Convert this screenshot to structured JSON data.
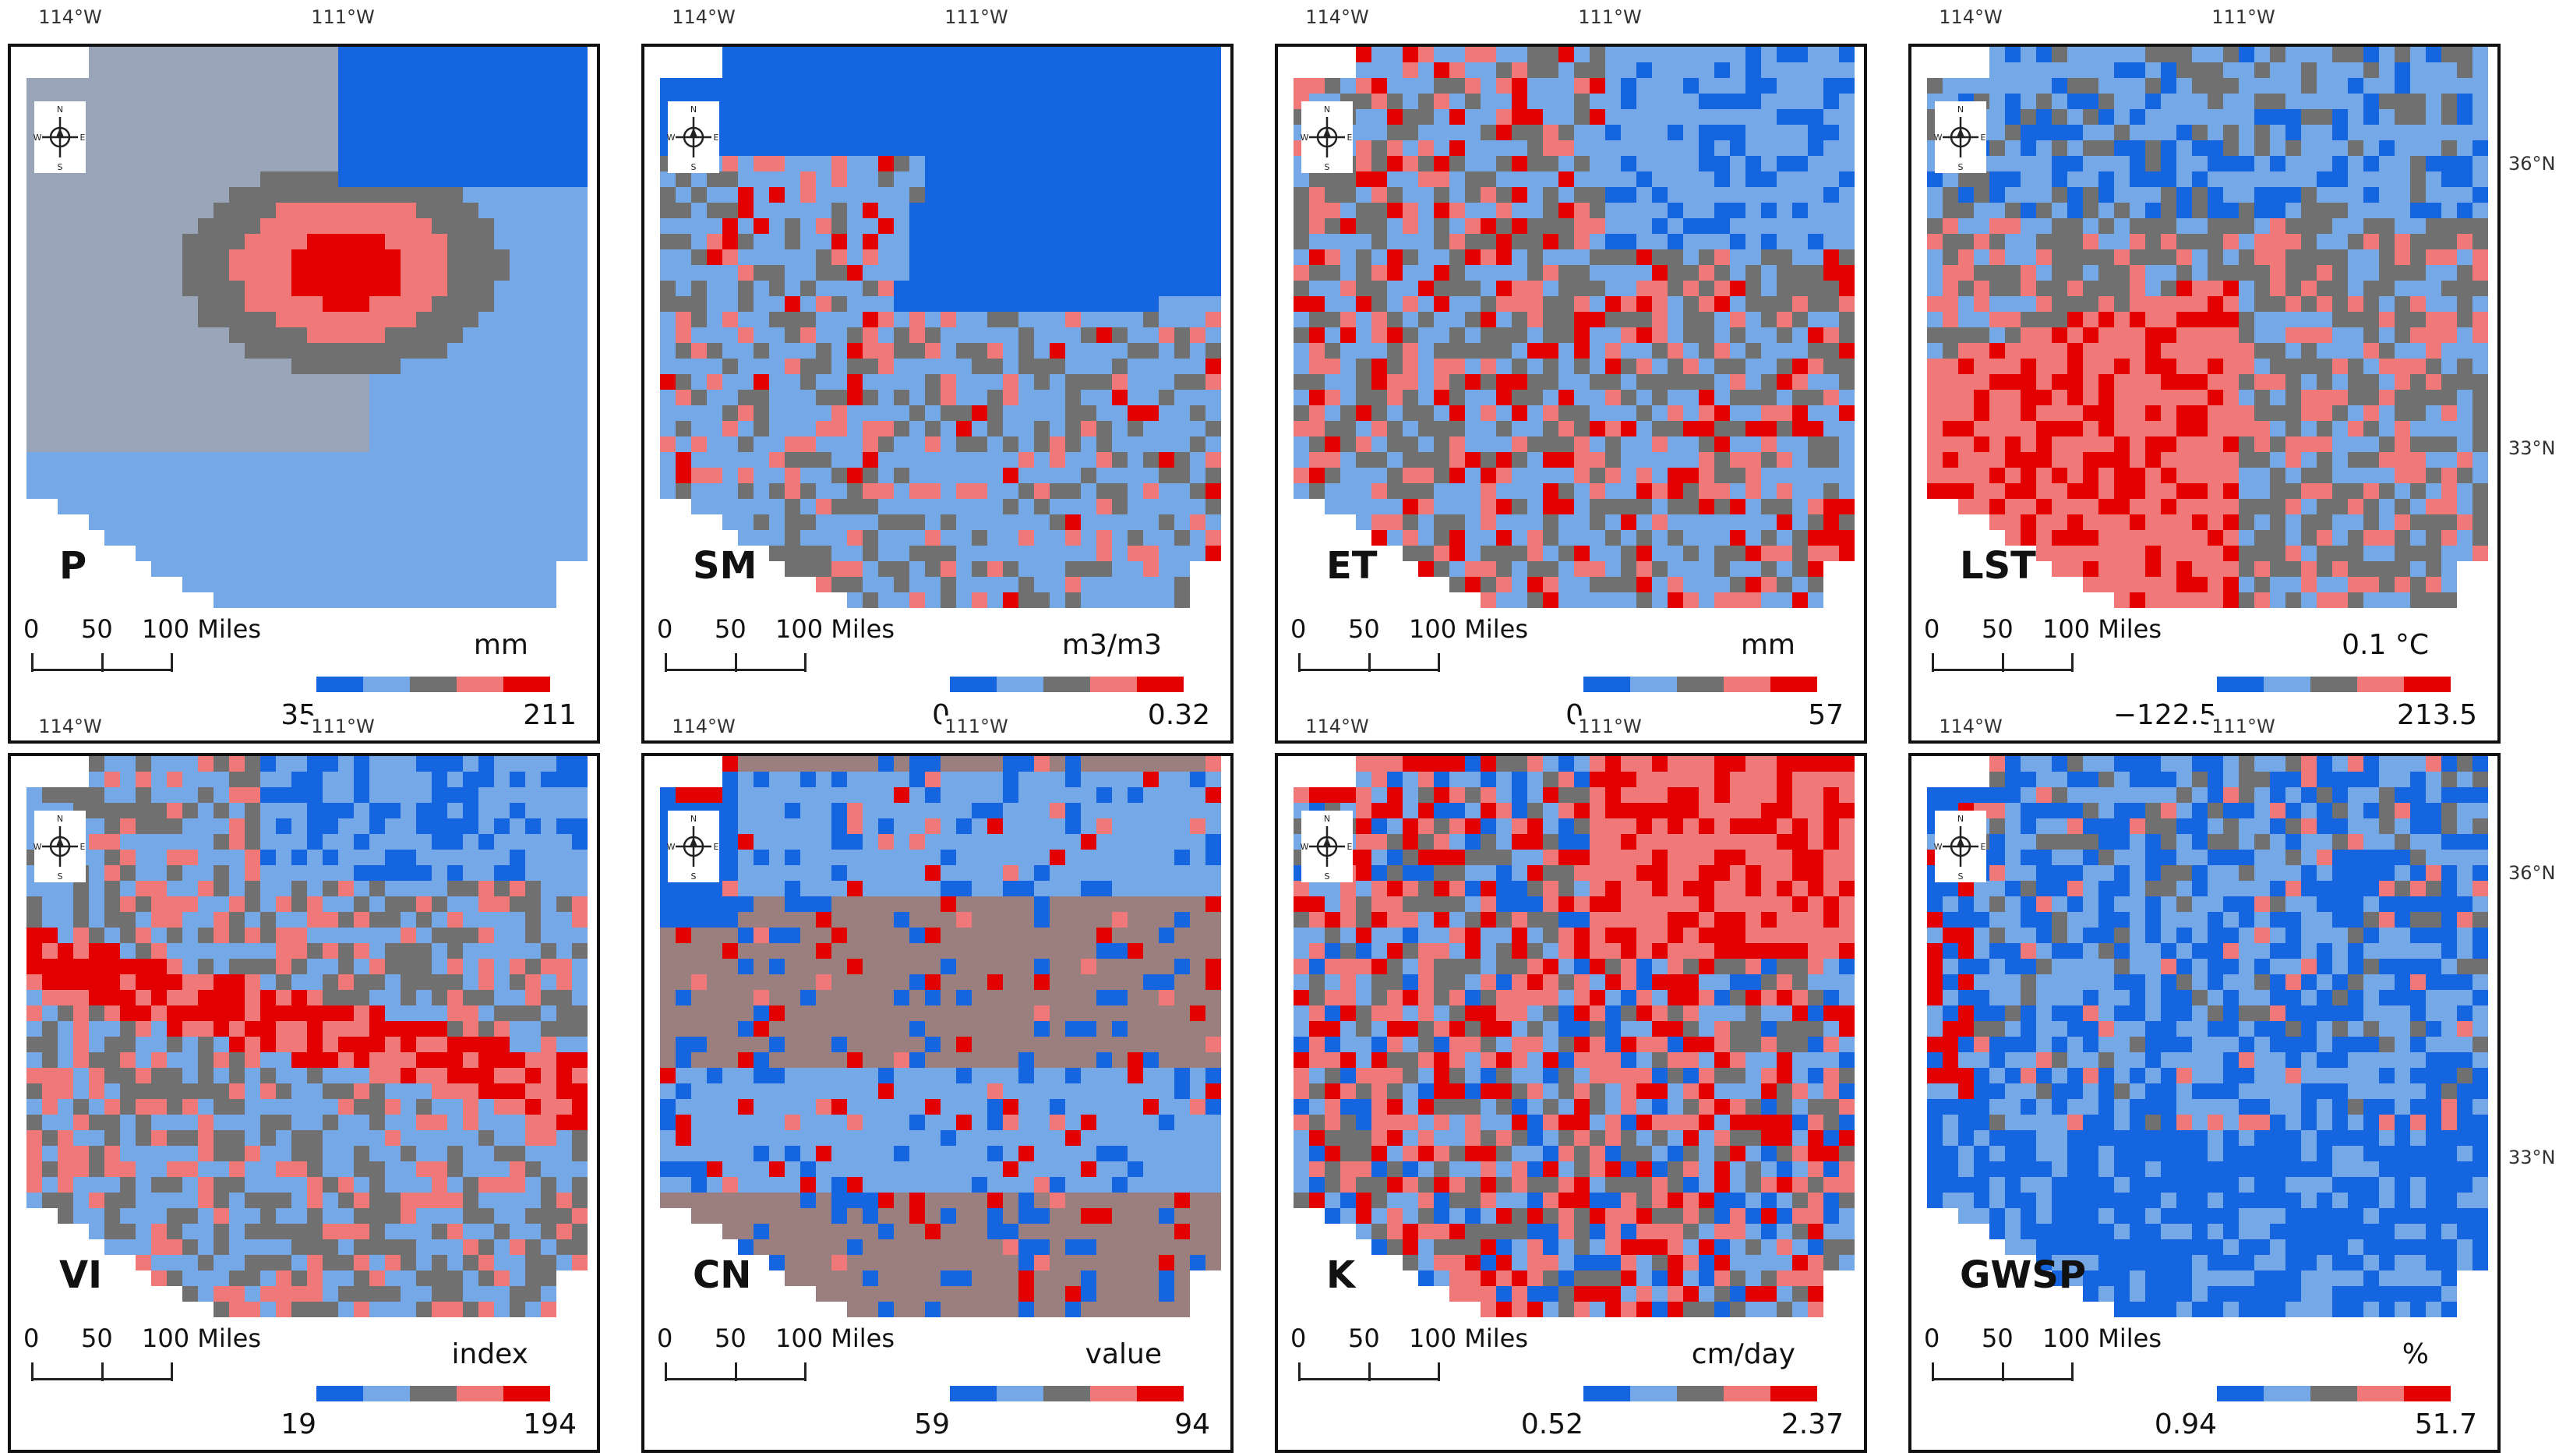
{
  "palette": {
    "blue_dark": "#1565e0",
    "blue_light": "#74a8e6",
    "gray": "#707070",
    "pink": "#f07878",
    "red": "#e20000",
    "brown": "#9b7e7e"
  },
  "scalebar": {
    "zero": "0",
    "fifty": "50",
    "hundred": "100 Miles"
  },
  "compass": {
    "n": "N",
    "s": "S",
    "e": "E",
    "w": "W"
  },
  "coords": {
    "lon1": "114°W",
    "lon2": "111°W",
    "lat1": "36°N",
    "lat2": "33°N"
  },
  "panels": [
    {
      "label": "P",
      "units": "mm",
      "min": "35",
      "max": "211",
      "pattern": "precip"
    },
    {
      "label": "SM",
      "units": "m3/m3",
      "min": "0",
      "max": "0.32",
      "pattern": "soil"
    },
    {
      "label": "ET",
      "units": "mm",
      "min": "0",
      "max": "57",
      "pattern": "et"
    },
    {
      "label": "LST",
      "units": "0.1 °C",
      "min": "−122.5",
      "max": "213.5",
      "pattern": "lst"
    },
    {
      "label": "VI",
      "units": "index",
      "min": "19",
      "max": "194",
      "pattern": "vi"
    },
    {
      "label": "CN",
      "units": "value",
      "min": "59",
      "max": "94",
      "pattern": "cn"
    },
    {
      "label": "K",
      "units": "cm/day",
      "min": "0.52",
      "max": "2.37",
      "pattern": "k"
    },
    {
      "label": "GWSP",
      "units": "%",
      "min": "0.94",
      "max": "51.7",
      "pattern": "gwsp"
    }
  ]
}
